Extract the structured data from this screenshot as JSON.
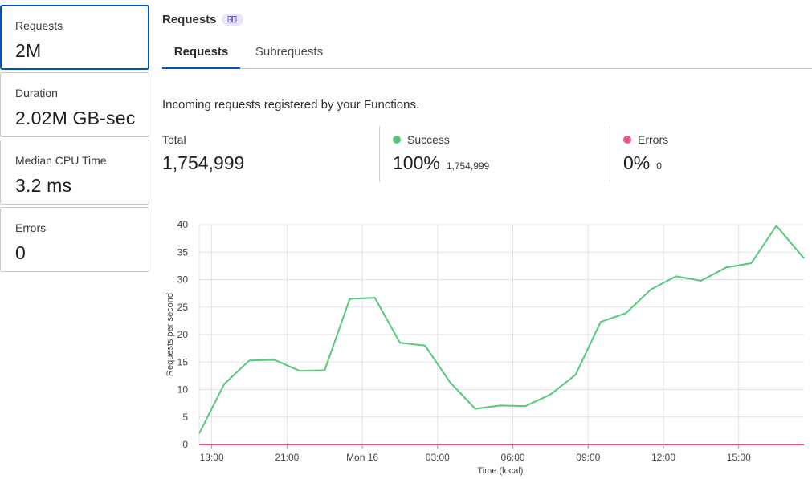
{
  "cards": [
    {
      "label": "Requests",
      "value": "2M",
      "active": true
    },
    {
      "label": "Duration",
      "value": "2.02M GB-sec",
      "active": false
    },
    {
      "label": "Median CPU Time",
      "value": "3.2 ms",
      "active": false
    },
    {
      "label": "Errors",
      "value": "0",
      "active": false
    }
  ],
  "header": {
    "title": "Requests",
    "badge_icon": "book-icon"
  },
  "tabs": [
    {
      "label": "Requests",
      "selected": true
    },
    {
      "label": "Subrequests",
      "selected": false
    }
  ],
  "description": "Incoming requests registered by your Functions.",
  "stats": {
    "total": {
      "label": "Total",
      "value": "1,754,999"
    },
    "success": {
      "label": "Success",
      "value": "100%",
      "count": "1,754,999",
      "color": "#55c97a"
    },
    "errors": {
      "label": "Errors",
      "value": "0%",
      "count": "0",
      "color": "#e8568a"
    }
  },
  "chart_data": {
    "type": "line",
    "xlabel": "Time (local)",
    "ylabel": "Requests per second",
    "ylim": [
      0,
      40
    ],
    "yticks": [
      0,
      5,
      10,
      15,
      20,
      25,
      30,
      35,
      40
    ],
    "xticks": [
      {
        "label": "18:00",
        "hour": 18
      },
      {
        "label": "21:00",
        "hour": 21
      },
      {
        "label": "Mon 16",
        "hour": 24
      },
      {
        "label": "03:00",
        "hour": 27
      },
      {
        "label": "06:00",
        "hour": 30
      },
      {
        "label": "09:00",
        "hour": 33
      },
      {
        "label": "12:00",
        "hour": 36
      },
      {
        "label": "15:00",
        "hour": 39
      }
    ],
    "xlim": [
      17.5,
      41.6
    ],
    "grid": true,
    "series": [
      {
        "color": "#55c97a",
        "x": [
          17.5,
          18.5,
          19.5,
          20.5,
          21.5,
          22.5,
          23.5,
          24.5,
          25.5,
          26.5,
          27.5,
          28.5,
          29.5,
          30.5,
          31.5,
          32.5,
          33.5,
          34.5,
          35.5,
          36.5,
          37.5,
          38.5,
          39.5,
          40.5,
          41.6
        ],
        "y": [
          2,
          11,
          15.3,
          15.4,
          13.4,
          13.5,
          26.5,
          26.7,
          18.5,
          18,
          11.3,
          6.5,
          7.1,
          7,
          9.1,
          12.7,
          22.3,
          23.9,
          28.2,
          30.6,
          29.8,
          32.2,
          33,
          39.8,
          33.9
        ]
      },
      {
        "color": "#e8568a",
        "x": [
          17.5,
          41.6
        ],
        "y": [
          0,
          0
        ]
      }
    ]
  }
}
